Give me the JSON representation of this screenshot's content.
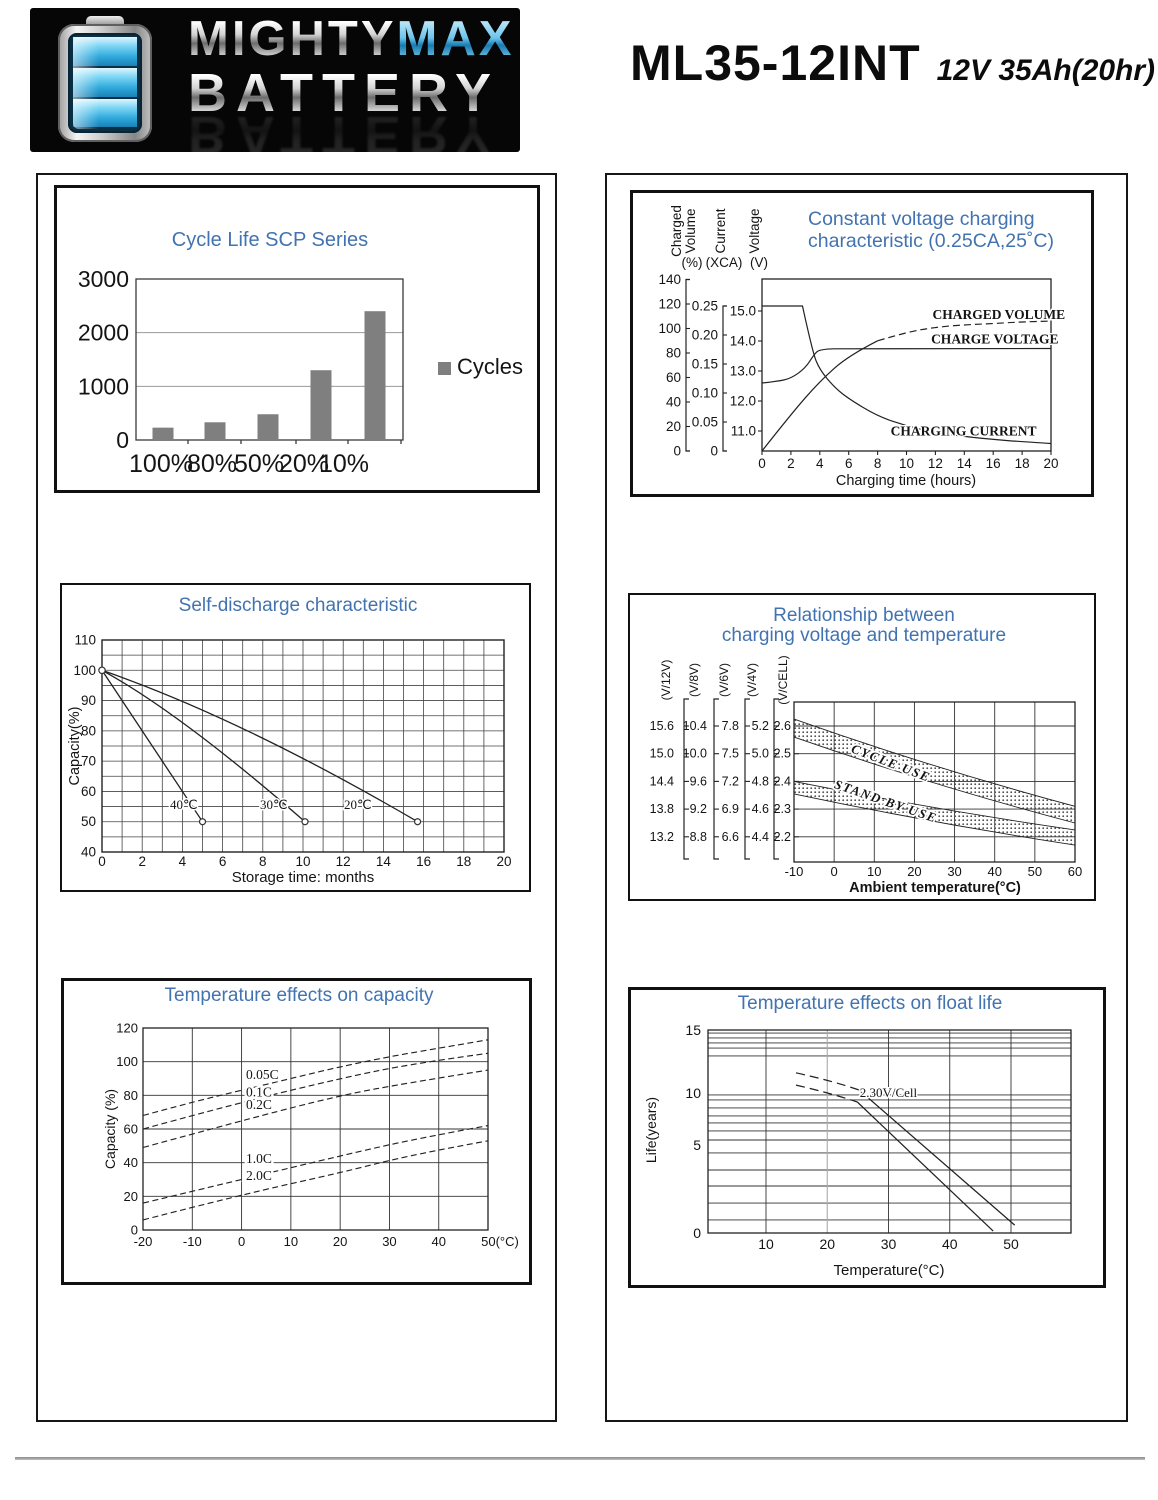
{
  "header": {
    "logo": {
      "word1": "MIGHTY",
      "word2": "MAX",
      "word3": "BATTERY"
    },
    "model": "ML35-12INT",
    "spec": "12V 35Ah(20hr)"
  },
  "colors": {
    "title_blue": "#4273b0",
    "bar_gray": "#7f7f7f",
    "line_dark": "#222222",
    "grid_gray": "#999999"
  },
  "chart_data": [
    {
      "id": "cycle-life",
      "type": "bar",
      "title": "Cycle Life SCP Series",
      "categories": [
        "100%",
        "80%",
        "50%",
        "20%",
        "10%"
      ],
      "values": [
        230,
        330,
        480,
        1300,
        2400
      ],
      "legend": "Cycles",
      "yticks": [
        "0",
        "1000",
        "2000",
        "3000"
      ],
      "ylim": [
        0,
        3000
      ]
    },
    {
      "id": "constant-voltage-charging",
      "type": "line",
      "title_lines": [
        "Constant voltage charging",
        "characteristic (0.25CA,25˚C)"
      ],
      "axes": [
        {
          "title": [
            "Charged",
            "Volume"
          ],
          "unit": "(%)",
          "ticks": [
            "140",
            "120",
            "100",
            "80",
            "60",
            "40",
            "20",
            "0"
          ]
        },
        {
          "title": [
            "Current"
          ],
          "unit": "(XCA)",
          "ticks": [
            "0.25",
            "0.20",
            "0.15",
            "0.10",
            "0.05",
            "0"
          ]
        },
        {
          "title": [
            "Voltage"
          ],
          "unit": "(V)",
          "ticks": [
            "15.0",
            "14.0",
            "13.0",
            "12.0",
            "11.0"
          ]
        }
      ],
      "xlabel": "Charging time (hours)",
      "xticks": [
        "0",
        "2",
        "4",
        "6",
        "8",
        "10",
        "12",
        "14",
        "16",
        "18",
        "20"
      ],
      "xlim": [
        0,
        20
      ],
      "series": [
        {
          "name": "CHARGED VOLUME",
          "axis": "volume",
          "points": [
            [
              0,
              0
            ],
            [
              2,
              30
            ],
            [
              4,
              57
            ],
            [
              6,
              78
            ],
            [
              8,
              90
            ],
            [
              10,
              97
            ],
            [
              12,
              101
            ],
            [
              14,
              103
            ],
            [
              16,
              104
            ],
            [
              18,
              105.5
            ],
            [
              20,
              106
            ]
          ],
          "dash_from_x": 8,
          "label_at": [
            11.8,
            111
          ]
        },
        {
          "name": "CHARGE VOLTAGE",
          "axis": "voltage",
          "points": [
            [
              0,
              12.6
            ],
            [
              1,
              12.65
            ],
            [
              2,
              12.75
            ],
            [
              3,
              13.1
            ],
            [
              3.6,
              13.55
            ],
            [
              4,
              13.73
            ],
            [
              6,
              13.75
            ],
            [
              20,
              13.75
            ]
          ],
          "label_at": [
            11.7,
            14.05
          ]
        },
        {
          "name": "CHARGING CURRENT",
          "axis": "current",
          "points": [
            [
              0,
              0.25
            ],
            [
              2.8,
              0.25
            ],
            [
              3.5,
              0.17
            ],
            [
              4,
              0.14
            ],
            [
              5,
              0.11
            ],
            [
              6,
              0.09
            ],
            [
              8,
              0.06
            ],
            [
              10,
              0.043
            ],
            [
              12,
              0.032
            ],
            [
              14,
              0.025
            ],
            [
              16,
              0.02
            ],
            [
              18,
              0.016
            ],
            [
              20,
              0.013
            ]
          ],
          "flat_head": true,
          "label_at": [
            8.9,
            0.034
          ]
        }
      ]
    },
    {
      "id": "self-discharge",
      "type": "line",
      "title": "Self-discharge characteristic",
      "xlabel": "Storage time: months",
      "ylabel": "Capacity(%)",
      "xticks": [
        "0",
        "2",
        "4",
        "6",
        "8",
        "10",
        "12",
        "14",
        "16",
        "18",
        "20"
      ],
      "yticks": [
        "110",
        "100",
        "90",
        "80",
        "70",
        "60",
        "50",
        "40"
      ],
      "xlim": [
        0,
        20
      ],
      "ylim": [
        40,
        110
      ],
      "series": [
        {
          "name": "40℃",
          "start": [
            0,
            100
          ],
          "end": [
            5,
            50
          ],
          "label_at": [
            3.38,
            55.5
          ]
        },
        {
          "name": "30℃",
          "start": [
            0,
            100
          ],
          "end": [
            10.1,
            50
          ],
          "label_at": [
            7.86,
            55.5
          ]
        },
        {
          "name": "20℃",
          "start": [
            0,
            100
          ],
          "end": [
            15.7,
            50
          ],
          "label_at": [
            12.04,
            55.5
          ]
        }
      ]
    },
    {
      "id": "charging-voltage-temperature",
      "type": "band",
      "title_lines": [
        "Relationship between",
        "charging voltage and temperature"
      ],
      "rail_headers": [
        "(V/12V)",
        "(V/8V)",
        "(V/6V)",
        "(V/4V)",
        "(V/CELL)"
      ],
      "rail_rows": [
        [
          "15.6",
          "10.4",
          "7.8",
          "5.2",
          "2.6"
        ],
        [
          "15.0",
          "10.0",
          "7.5",
          "5.0",
          "2.5"
        ],
        [
          "14.4",
          "9.6",
          "7.2",
          "4.8",
          "2.4"
        ],
        [
          "13.8",
          "9.2",
          "6.9",
          "4.6",
          "2.3"
        ],
        [
          "13.2",
          "8.8",
          "6.6",
          "4.4",
          "2.2"
        ]
      ],
      "xlabel": "Ambient temperature(°C)",
      "xticks": [
        "-10",
        "0",
        "10",
        "20",
        "30",
        "40",
        "50",
        "60"
      ],
      "xlim": [
        -10,
        60
      ],
      "bands": [
        {
          "name": "CYCLE USE",
          "upper": [
            [
              -10,
              2.625
            ],
            [
              60,
              2.31
            ]
          ],
          "lower": [
            [
              -10,
              2.56
            ],
            [
              60,
              2.25
            ]
          ],
          "label_angle": 21
        },
        {
          "name": "STAND BY USE",
          "upper": [
            [
              -10,
              2.4
            ],
            [
              60,
              2.225
            ]
          ],
          "lower": [
            [
              -10,
              2.355
            ],
            [
              60,
              2.17
            ]
          ],
          "label_angle": 19
        }
      ]
    },
    {
      "id": "temperature-capacity",
      "type": "line",
      "title": "Temperature effects on capacity",
      "ylabel": "Capacity (%)",
      "yticks": [
        "120",
        "100",
        "80",
        "60",
        "40",
        "20",
        "0"
      ],
      "xticks": [
        "-20",
        "-10",
        "0",
        "10",
        "20",
        "30",
        "40",
        "50(°C)"
      ],
      "xlim": [
        -20,
        50
      ],
      "ylim": [
        0,
        120
      ],
      "series": [
        {
          "name": "0.05C",
          "points": [
            [
              -20,
              68
            ],
            [
              -10,
              76
            ],
            [
              0,
              83
            ],
            [
              10,
              90
            ],
            [
              20,
              97
            ],
            [
              30,
              103
            ],
            [
              40,
              108
            ],
            [
              50,
              113
            ]
          ],
          "label_at": [
            0.9,
            92.5
          ]
        },
        {
          "name": "0.1C",
          "points": [
            [
              -20,
              60
            ],
            [
              0,
              76
            ],
            [
              20,
              90
            ],
            [
              35,
              99
            ],
            [
              50,
              105
            ]
          ],
          "label_at": [
            0.9,
            82
          ]
        },
        {
          "name": "0.2C",
          "points": [
            [
              -20,
              49
            ],
            [
              0,
              65
            ],
            [
              20,
              80
            ],
            [
              35,
              88
            ],
            [
              50,
              95
            ]
          ],
          "label_at": [
            0.9,
            74.5
          ]
        },
        {
          "name": "1.0C",
          "points": [
            [
              -20,
              16
            ],
            [
              0,
              30
            ],
            [
              20,
              44
            ],
            [
              35,
              54
            ],
            [
              50,
              62
            ]
          ],
          "label_at": [
            0.9,
            42.5
          ]
        },
        {
          "name": "2.0C",
          "points": [
            [
              -20,
              6
            ],
            [
              0,
              21
            ],
            [
              20,
              34
            ],
            [
              35,
              45
            ],
            [
              50,
              53
            ]
          ],
          "label_at": [
            0.9,
            32.5
          ]
        }
      ]
    },
    {
      "id": "float-life",
      "type": "band",
      "title": "Temperature effects on float life",
      "ylabel": "Life(years)",
      "xlabel": "Temperature(°C)",
      "yticks": [
        "15",
        "10",
        "5",
        "0"
      ],
      "xticks": [
        "10",
        "20",
        "30",
        "40",
        "50"
      ],
      "annotation": {
        "text": "2.30V/Cell",
        "at": [
          25.3,
          9.62
        ]
      },
      "ygrid_years": [
        14.76,
        14.37,
        13.97,
        13.57,
        12.94,
        9.81,
        9.33,
        8.56,
        7.79,
        7.12,
        6.35,
        5.48,
        4.55,
        3.58,
        2.67,
        1.7,
        0.74
      ],
      "band": {
        "upper": {
          "dashed": [
            [
              14.9,
              11.6
            ],
            [
              20.9,
              10.95
            ],
            [
              25.2,
              10.24
            ]
          ],
          "solid": [
            [
              25.2,
              10.24
            ],
            [
              50.6,
              0.45
            ]
          ]
        },
        "lower": {
          "dashed": [
            [
              14.9,
              10.63
            ],
            [
              20.5,
              10.0
            ],
            [
              24.9,
              9.13
            ]
          ],
          "solid": [
            [
              24.9,
              9.13
            ],
            [
              47.1,
              0.11
            ]
          ]
        }
      }
    }
  ]
}
